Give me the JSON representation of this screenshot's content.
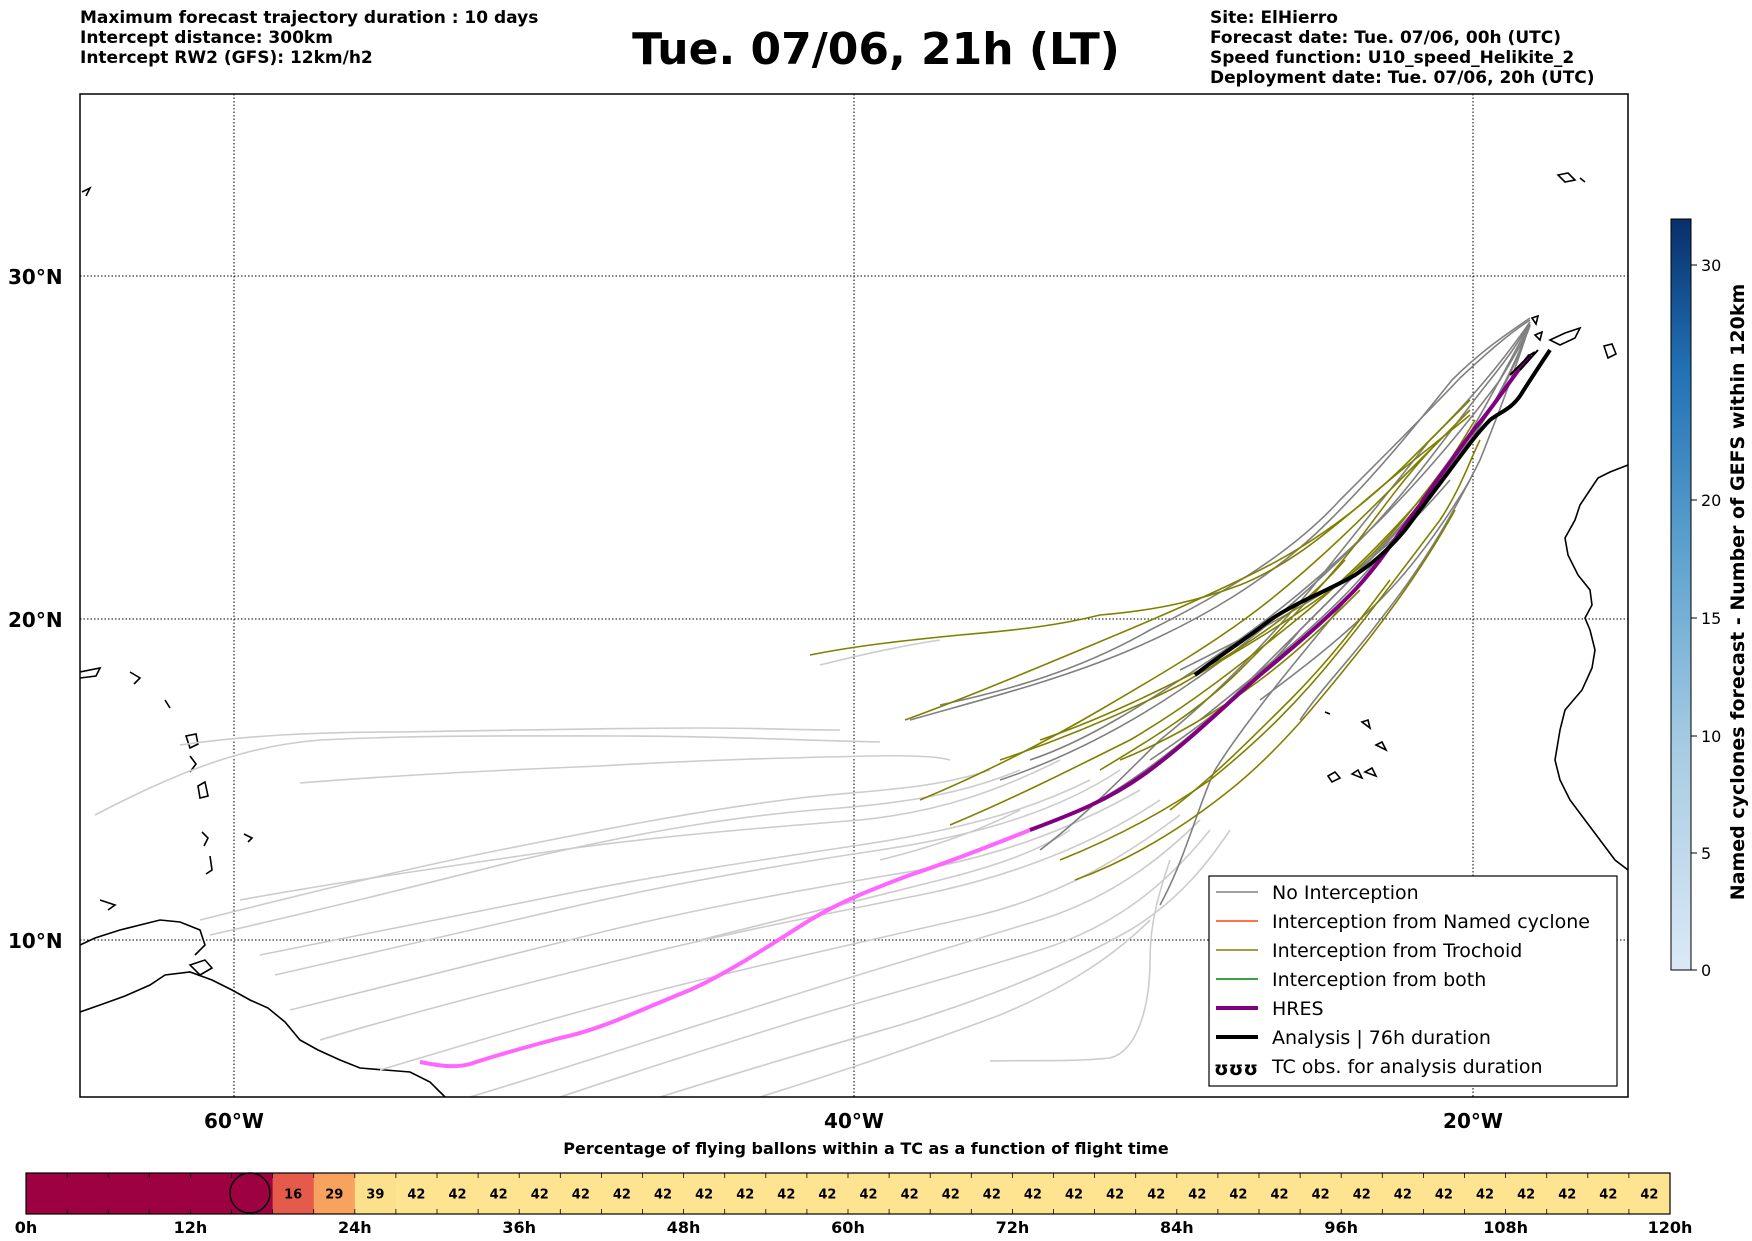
{
  "header": {
    "left_lines": [
      "Maximum forecast trajectory duration : 10 days",
      "Intercept distance: 300km",
      "Intercept RW2 (GFS):  12km/h2"
    ],
    "title": "Tue. 07/06, 21h (LT)",
    "right_lines": [
      "Site: ElHierro",
      "Forecast date: Tue. 07/06, 00h (UTC)",
      "Speed function: U10_speed_Helikite_2",
      "Deployment date: Tue. 07/06, 20h (UTC)"
    ]
  },
  "map": {
    "lat_labels": [
      "30°N",
      "20°N",
      "10°N"
    ],
    "lon_labels": [
      "60°W",
      "40°W",
      "20°W"
    ],
    "legend": [
      {
        "label": "No Interception",
        "color": "#808080",
        "width": 1.5
      },
      {
        "label": "Interception from Named cyclone",
        "color": "#ff4500",
        "width": 1.5
      },
      {
        "label": "Interception from Trochoid",
        "color": "#808000",
        "width": 1.5
      },
      {
        "label": "Interception from both",
        "color": "#008000",
        "width": 1.5
      },
      {
        "label": "HRES",
        "color": "#800080",
        "width": 4
      },
      {
        "label": "Analysis | 76h duration",
        "color": "#000000",
        "width": 4
      },
      {
        "label": "TC obs. for analysis duration",
        "symbol": "ʊʊʊ"
      }
    ],
    "colors": {
      "no_interception": "#808080",
      "ensemble_light": "#cccccc",
      "trochoid": "#808000",
      "hres": "#800080",
      "hres_extended": "#ff66ff",
      "analysis": "#000000"
    }
  },
  "colorbar": {
    "label": "Named cyclones forecast - Number of GEFS within 120km",
    "ticks": [
      "0",
      "5",
      "10",
      "15",
      "20",
      "30"
    ]
  },
  "bottom_bar": {
    "title": "Percentage of flying ballons within a TC as a function of flight time",
    "time_labels": [
      "0h",
      "12h",
      "24h",
      "36h",
      "48h",
      "60h",
      "72h",
      "84h",
      "96h",
      "108h",
      "120h"
    ],
    "cells": [
      "",
      "",
      "",
      "",
      "",
      "",
      "16",
      "29",
      "39",
      "42",
      "42",
      "42",
      "42",
      "42",
      "42",
      "42",
      "42",
      "42",
      "42",
      "42",
      "42",
      "42",
      "42",
      "42",
      "42",
      "42",
      "42",
      "42",
      "42",
      "42",
      "42",
      "42",
      "42",
      "42",
      "42",
      "42",
      "42",
      "42",
      "42",
      "42"
    ],
    "colors": {
      "dark": "#9e0142",
      "c16": "#e45a4b",
      "c29": "#f7a25f",
      "c39": "#fde08b",
      "c42": "#fee491"
    }
  }
}
